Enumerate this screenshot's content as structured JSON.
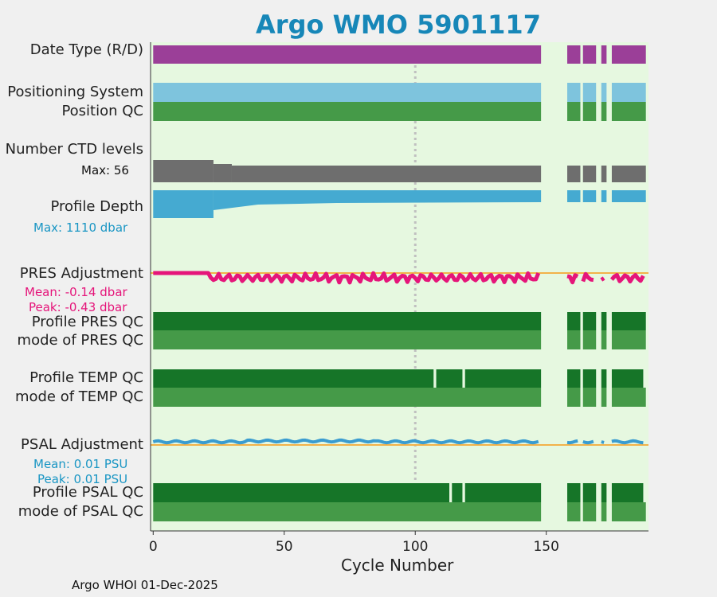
{
  "title": "Argo WMO 5901117",
  "footer": "Argo WHOI 01-Dec-2025",
  "colors": {
    "background": "#e6f8e0",
    "date_type": "#9b3f98",
    "positioning": "#7ec4dd",
    "qc_dark": "#167528",
    "qc_light": "#459a48",
    "ctd": "#6e6e6e",
    "profile_depth": "#45aad1",
    "pres_adjustment": "#e5157a",
    "psal_adjustment": "#3a9cd0",
    "zero_line": "#f2b24a",
    "reference_line": "#c0c0c0",
    "title": "#1787b8"
  },
  "labels": {
    "date_type": "Date Type (R/D)",
    "positioning_system": "Positioning System",
    "position_qc": "Position QC",
    "num_ctd": "Number CTD levels",
    "ctd_max": "Max: 56",
    "profile_depth": "Profile Depth",
    "depth_max": "Max: 1110 dbar",
    "pres_adjustment": "PRES Adjustment",
    "pres_mean": "Mean: -0.14 dbar",
    "pres_peak": "Peak: -0.43 dbar",
    "profile_pres_qc": "Profile PRES QC",
    "mode_pres_qc": "mode of PRES QC",
    "profile_temp_qc": "Profile TEMP QC",
    "mode_temp_qc": "mode of TEMP QC",
    "psal_adjustment": "PSAL Adjustment",
    "psal_mean": "Mean: 0.01 PSU",
    "psal_peak": "Peak: 0.01 PSU",
    "profile_psal_qc": "Profile PSAL QC",
    "mode_psal_qc": "mode of PSAL QC"
  },
  "chart_data": {
    "type": "bar",
    "xlabel": "Cycle Number",
    "xlim": [
      -1,
      189
    ],
    "xticks": [
      0,
      50,
      100,
      150
    ],
    "reference_cycle": 100,
    "data_segments": [
      [
        0,
        147
      ],
      [
        158,
        162
      ],
      [
        164,
        168
      ],
      [
        171,
        172
      ],
      [
        175,
        187
      ]
    ],
    "temp_qc_gaps": [
      107,
      118,
      187
    ],
    "psal_qc_gaps": [
      113,
      118,
      187
    ],
    "ctd_levels_max": 56,
    "profile_depth_max_dbar": 1110,
    "pres_adjustment_mean_dbar": -0.14,
    "pres_adjustment_peak_dbar": -0.43,
    "psal_adjustment_mean_psu": 0.01,
    "psal_adjustment_peak_psu": 0.01
  }
}
